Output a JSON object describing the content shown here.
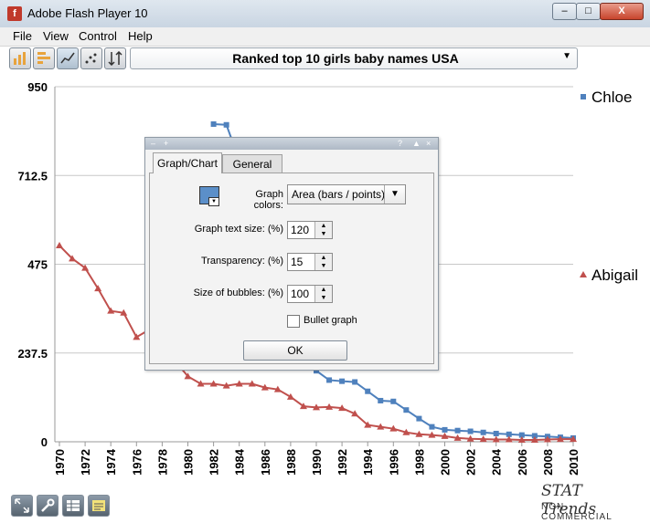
{
  "window": {
    "title": "Adobe Flash Player 10",
    "app_icon_glyph": "f"
  },
  "menu": [
    "File",
    "View",
    "Control",
    "Help"
  ],
  "toolbar": {
    "buttons": [
      "bar-chart-icon",
      "horizontal-bar-icon",
      "line-chart-icon",
      "scatter-chart-icon",
      "sort-icon"
    ],
    "dataset_title": "Ranked top 10 girls baby names USA"
  },
  "dialog": {
    "tabs": [
      "Graph/Chart",
      "General"
    ],
    "graph_colors_label": "Graph colors:",
    "graph_colors_value": "Area (bars / points)",
    "text_size_label": "Graph text size: (%)",
    "text_size_value": "120",
    "transparency_label": "Transparency: (%)",
    "transparency_value": "15",
    "bubble_size_label": "Size of bubbles: (%)",
    "bubble_size_value": "100",
    "bullet_graph_label": "Bullet graph",
    "bullet_graph_checked": false,
    "ok_label": "OK"
  },
  "brand": {
    "name": "STAT Trends",
    "sub": "NON-COMMERCIAL"
  },
  "chart_data": {
    "type": "line",
    "ylim": [
      0,
      950
    ],
    "yticks": [
      "950",
      "712.5",
      "475",
      "237.5",
      "0"
    ],
    "xlim": [
      1970,
      2010
    ],
    "xtick_labels": [
      "1970",
      "1972",
      "1974",
      "1976",
      "1978",
      "1980",
      "1982",
      "1984",
      "1986",
      "1988",
      "1990",
      "1992",
      "1994",
      "1996",
      "1998",
      "2000",
      "2002",
      "2004",
      "2006",
      "2008",
      "2010"
    ],
    "legend_position": "right",
    "series": [
      {
        "name": "Chloe",
        "color": "#4f81bd",
        "marker": "square",
        "points": [
          [
            1982,
            850
          ],
          [
            1983,
            848
          ],
          [
            1990,
            190
          ],
          [
            1991,
            165
          ],
          [
            1992,
            162
          ],
          [
            1993,
            160
          ],
          [
            1994,
            135
          ],
          [
            1995,
            110
          ],
          [
            1996,
            108
          ],
          [
            1997,
            85
          ],
          [
            1998,
            62
          ],
          [
            1999,
            40
          ],
          [
            2000,
            32
          ],
          [
            2001,
            30
          ],
          [
            2002,
            28
          ],
          [
            2003,
            25
          ],
          [
            2004,
            22
          ],
          [
            2005,
            20
          ],
          [
            2006,
            18
          ],
          [
            2007,
            16
          ],
          [
            2008,
            14
          ],
          [
            2009,
            12
          ],
          [
            2010,
            10
          ]
        ]
      },
      {
        "name": "Abigail",
        "color": "#c0504d",
        "marker": "triangle",
        "points": [
          [
            1970,
            525
          ],
          [
            1971,
            490
          ],
          [
            1972,
            465
          ],
          [
            1973,
            410
          ],
          [
            1974,
            350
          ],
          [
            1975,
            345
          ],
          [
            1976,
            280
          ],
          [
            1977,
            300
          ],
          [
            1980,
            175
          ],
          [
            1981,
            155
          ],
          [
            1982,
            155
          ],
          [
            1983,
            150
          ],
          [
            1984,
            155
          ],
          [
            1985,
            155
          ],
          [
            1986,
            145
          ],
          [
            1987,
            140
          ],
          [
            1988,
            120
          ],
          [
            1989,
            95
          ],
          [
            1990,
            92
          ],
          [
            1991,
            93
          ],
          [
            1992,
            90
          ],
          [
            1993,
            75
          ],
          [
            1994,
            45
          ],
          [
            1995,
            40
          ],
          [
            1996,
            35
          ],
          [
            1997,
            25
          ],
          [
            1998,
            20
          ],
          [
            1999,
            18
          ],
          [
            2000,
            15
          ],
          [
            2001,
            10
          ],
          [
            2002,
            8
          ],
          [
            2003,
            7
          ],
          [
            2004,
            6
          ],
          [
            2005,
            6
          ],
          [
            2006,
            5
          ],
          [
            2007,
            5
          ],
          [
            2008,
            6
          ],
          [
            2009,
            7
          ],
          [
            2010,
            7
          ]
        ]
      }
    ]
  }
}
